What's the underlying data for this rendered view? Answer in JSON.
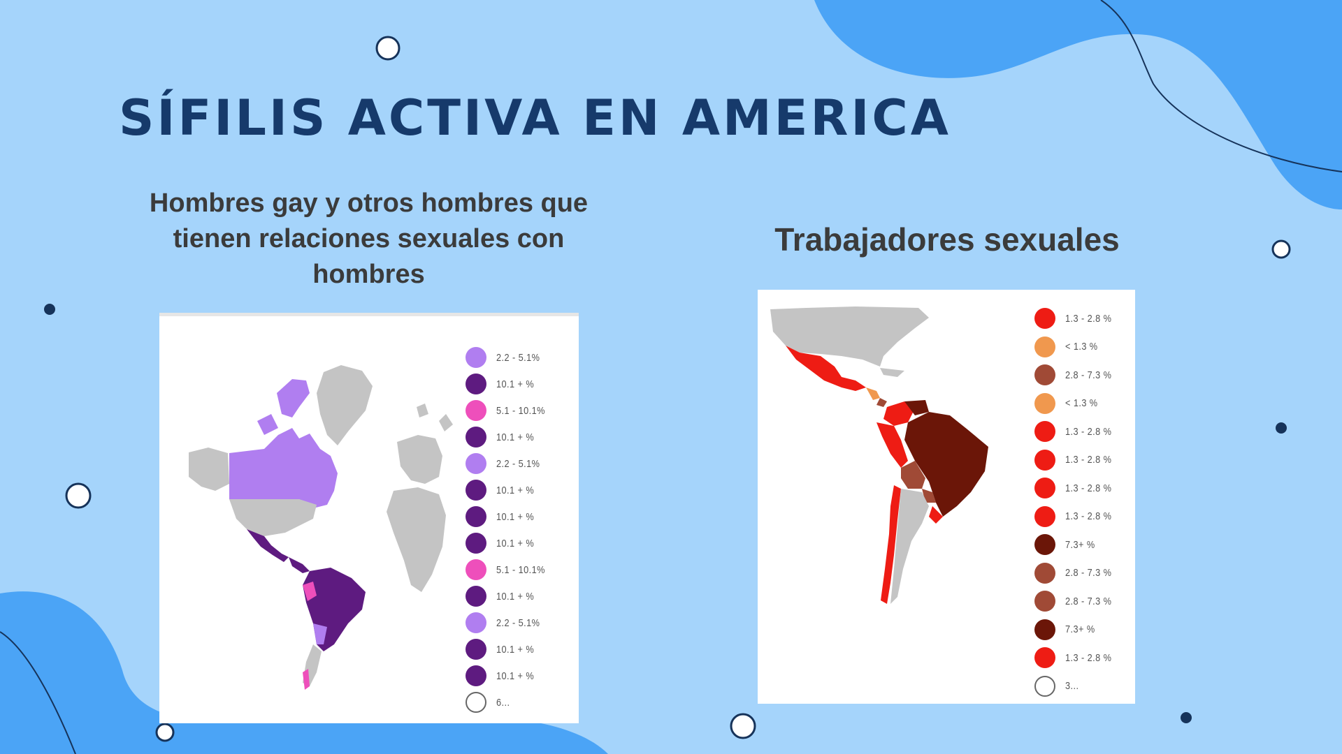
{
  "title": "SÍFILIS ACTIVA EN AMERICA",
  "left_panel": {
    "subtitle": "Hombres gay y otros hombres que tienen relaciones sexuales con hombres",
    "legend": [
      {
        "label": "2.2 - 5.1%",
        "color": "#b07ef0"
      },
      {
        "label": "10.1 + %",
        "color": "#5e1b80"
      },
      {
        "label": "5.1 - 10.1%",
        "color": "#ee4fbb"
      },
      {
        "label": "10.1 + %",
        "color": "#5e1b80"
      },
      {
        "label": "2.2 - 5.1%",
        "color": "#b07ef0"
      },
      {
        "label": "10.1 + %",
        "color": "#5e1b80"
      },
      {
        "label": "10.1 + %",
        "color": "#5e1b80"
      },
      {
        "label": "10.1 + %",
        "color": "#5e1b80"
      },
      {
        "label": "5.1 - 10.1%",
        "color": "#ee4fbb"
      },
      {
        "label": "10.1 + %",
        "color": "#5e1b80"
      },
      {
        "label": "2.2 - 5.1%",
        "color": "#b07ef0"
      },
      {
        "label": "10.1 + %",
        "color": "#5e1b80"
      },
      {
        "label": "10.1 + %",
        "color": "#5e1b80"
      },
      {
        "label": "6...",
        "color": "none"
      }
    ]
  },
  "right_panel": {
    "subtitle": "Trabajadores sexuales",
    "legend": [
      {
        "label": "1.3 - 2.8 %",
        "color": "#ee1c14"
      },
      {
        "label": "< 1.3 %",
        "color": "#f0984e"
      },
      {
        "label": "2.8 - 7.3 %",
        "color": "#a04a36"
      },
      {
        "label": "< 1.3 %",
        "color": "#f0984e"
      },
      {
        "label": "1.3 - 2.8 %",
        "color": "#ee1c14"
      },
      {
        "label": "1.3 - 2.8 %",
        "color": "#ee1c14"
      },
      {
        "label": "1.3 - 2.8 %",
        "color": "#ee1c14"
      },
      {
        "label": "1.3 - 2.8 %",
        "color": "#ee1c14"
      },
      {
        "label": "7.3+ %",
        "color": "#6b1608"
      },
      {
        "label": "2.8 - 7.3 %",
        "color": "#a04a36"
      },
      {
        "label": "2.8 - 7.3 %",
        "color": "#a04a36"
      },
      {
        "label": "7.3+ %",
        "color": "#6b1608"
      },
      {
        "label": "1.3 - 2.8 %",
        "color": "#ee1c14"
      },
      {
        "label": "3...",
        "color": "none"
      }
    ]
  },
  "colors": {
    "background": "#a5d4fb",
    "blob": "#4ba4f6",
    "title": "#163a6b",
    "map_gray": "#c4c4c4"
  }
}
